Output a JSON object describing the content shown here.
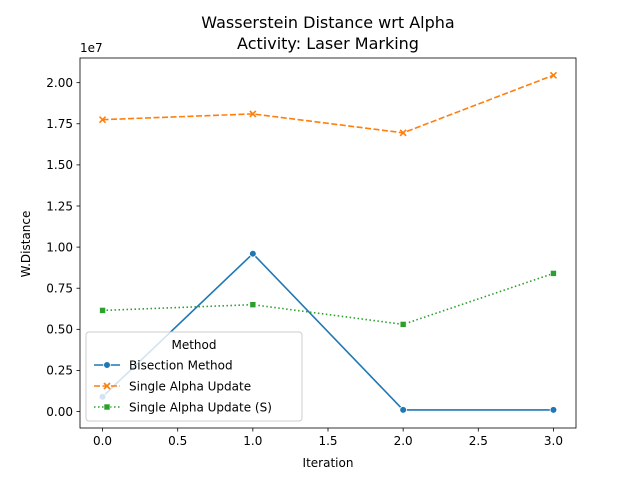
{
  "chart_data": {
    "type": "line",
    "title": "Wasserstein Distance wrt Alpha",
    "subtitle": "Activity: Laser Marking",
    "xlabel": "Iteration",
    "ylabel": "W.Distance",
    "y_offset_label": "1e7",
    "xlim": [
      -0.15,
      3.15
    ],
    "ylim": [
      -0.1,
      2.15
    ],
    "y_scale_factor": 10000000,
    "x_ticks": [
      0,
      0.5,
      1,
      1.5,
      2,
      2.5,
      3
    ],
    "x_tick_labels": [
      "0.0",
      "0.5",
      "1.0",
      "1.5",
      "2.0",
      "2.5",
      "3.0"
    ],
    "y_ticks": [
      0,
      0.25,
      0.5,
      0.75,
      1.0,
      1.25,
      1.5,
      1.75,
      2.0
    ],
    "y_tick_labels": [
      "0.00",
      "0.25",
      "0.50",
      "0.75",
      "1.00",
      "1.25",
      "1.50",
      "1.75",
      "2.00"
    ],
    "grid": false,
    "legend": {
      "title": "Method",
      "placement": "lower-left"
    },
    "x": [
      0,
      1,
      2,
      3
    ],
    "series": [
      {
        "name": "Bisection Method",
        "color": "#1f77b4",
        "dash": "solid",
        "marker": "circle",
        "values": [
          0.09,
          0.96,
          0.01,
          0.01
        ]
      },
      {
        "name": "Single Alpha Update",
        "color": "#ff7f0e",
        "dash": "dashed",
        "marker": "x",
        "values": [
          1.775,
          1.81,
          1.695,
          2.045
        ]
      },
      {
        "name": "Single Alpha Update (S)",
        "color": "#2ca02c",
        "dash": "dotted",
        "marker": "square",
        "values": [
          0.615,
          0.65,
          0.53,
          0.84
        ]
      }
    ]
  }
}
